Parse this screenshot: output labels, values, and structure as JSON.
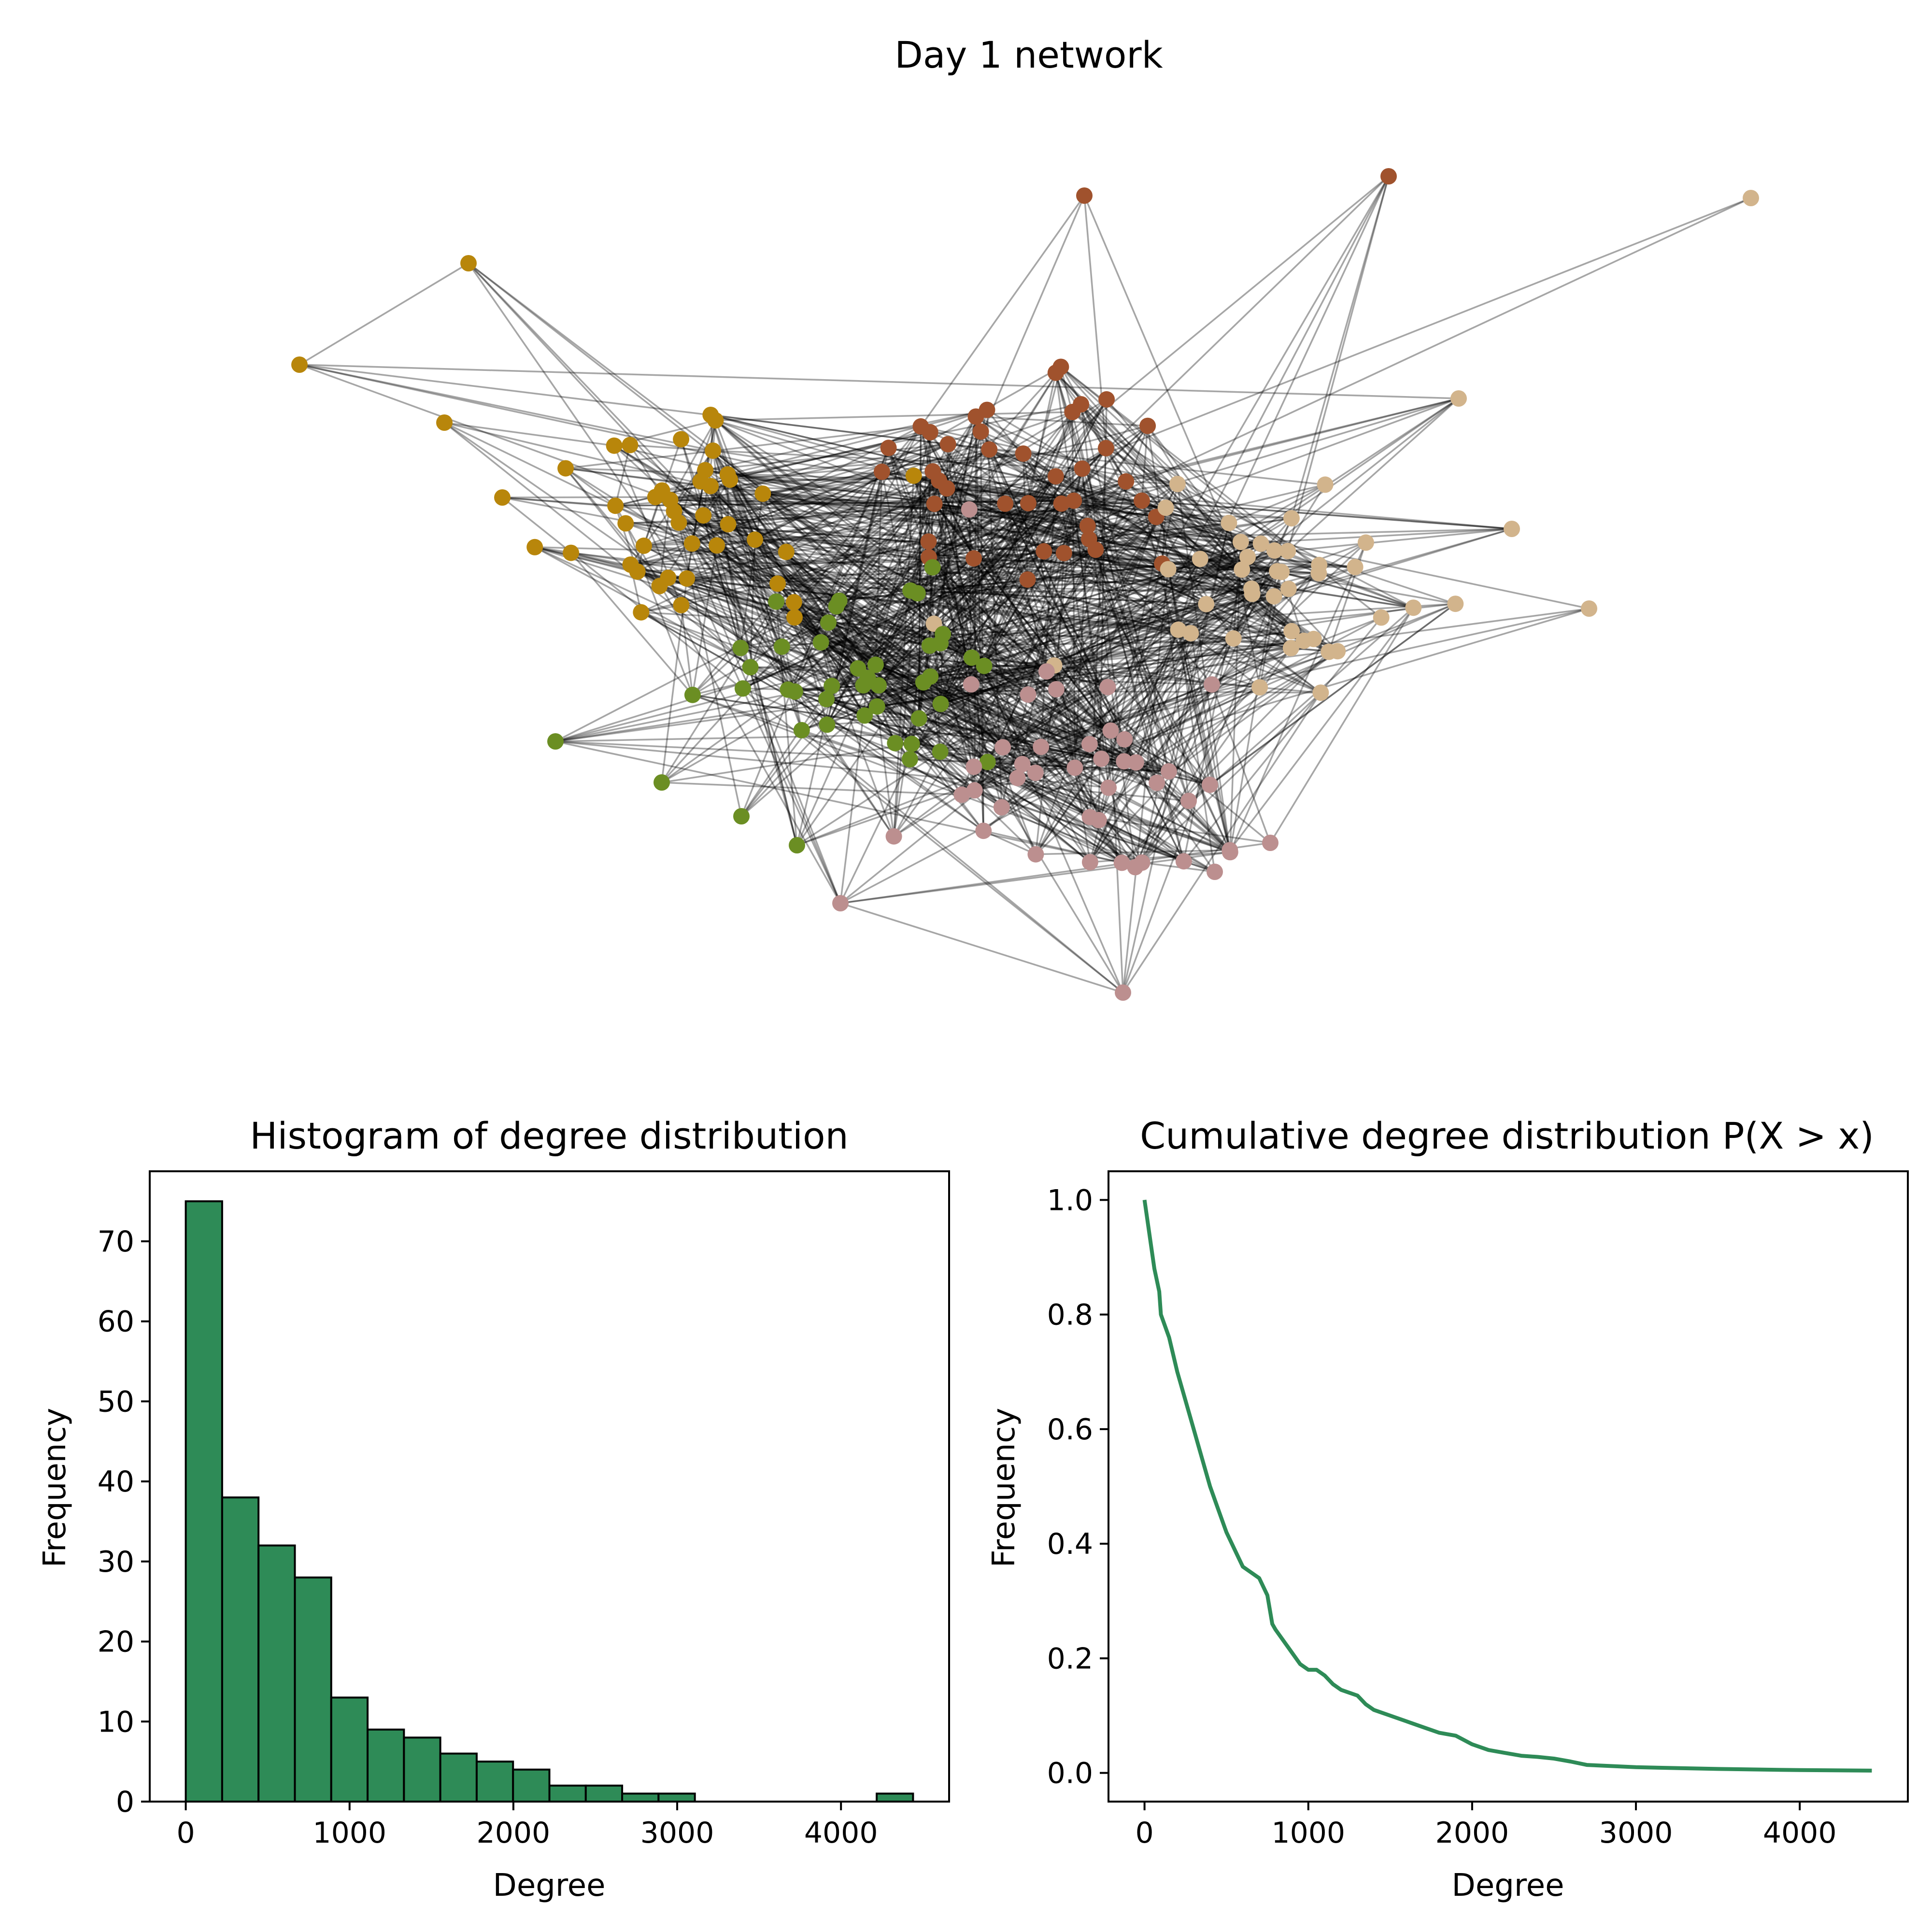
{
  "network": {
    "title": "Day 1 network",
    "community_colors": [
      "#b8860b",
      "#a0522d",
      "#d2b48c",
      "#6b8e23",
      "#bc8f8f"
    ],
    "edge_color": "#000000"
  },
  "chart_data": [
    {
      "type": "bar",
      "title": "Histogram of degree distribution",
      "xlabel": "Degree",
      "ylabel": "Frequency",
      "bin_edges": [
        0,
        222,
        444,
        666,
        888,
        1110,
        1332,
        1554,
        1776,
        1998,
        2220,
        2442,
        2664,
        2886,
        3108,
        3330,
        3552,
        3774,
        3996,
        4218,
        4440
      ],
      "values": [
        75,
        38,
        32,
        28,
        13,
        9,
        8,
        6,
        5,
        4,
        2,
        2,
        1,
        1,
        0,
        0,
        0,
        0,
        0,
        1
      ],
      "xlim": [
        -220,
        4660
      ],
      "ylim": [
        0,
        78.75
      ],
      "xticks": [
        0,
        1000,
        2000,
        3000,
        4000
      ],
      "yticks": [
        0,
        10,
        20,
        30,
        40,
        50,
        60,
        70
      ],
      "color": "#2e8b57",
      "edgecolor": "#000000"
    },
    {
      "type": "line",
      "title": "Cumulative degree distribution P(X > x)",
      "xlabel": "Degree",
      "ylabel": "Frequency",
      "x": [
        0,
        30,
        60,
        90,
        100,
        150,
        200,
        250,
        300,
        350,
        400,
        450,
        500,
        550,
        600,
        650,
        700,
        750,
        780,
        800,
        850,
        900,
        950,
        1000,
        1050,
        1100,
        1150,
        1200,
        1300,
        1350,
        1400,
        1500,
        1600,
        1700,
        1800,
        1900,
        2000,
        2100,
        2200,
        2300,
        2400,
        2500,
        2600,
        2700,
        3000,
        3500,
        4000,
        4440
      ],
      "y": [
        1.0,
        0.94,
        0.88,
        0.84,
        0.8,
        0.76,
        0.7,
        0.65,
        0.6,
        0.55,
        0.5,
        0.46,
        0.42,
        0.39,
        0.36,
        0.35,
        0.34,
        0.31,
        0.26,
        0.25,
        0.23,
        0.21,
        0.19,
        0.18,
        0.18,
        0.17,
        0.155,
        0.145,
        0.135,
        0.12,
        0.11,
        0.1,
        0.09,
        0.08,
        0.07,
        0.065,
        0.05,
        0.04,
        0.035,
        0.03,
        0.028,
        0.025,
        0.02,
        0.014,
        0.01,
        0.007,
        0.005,
        0.004
      ],
      "xlim": [
        -220,
        4660
      ],
      "ylim": [
        -0.05,
        1.05
      ],
      "xticks": [
        0,
        1000,
        2000,
        3000,
        4000
      ],
      "yticks": [
        "0.0",
        "0.2",
        "0.4",
        "0.6",
        "0.8",
        "1.0"
      ],
      "color": "#2e8b57"
    }
  ]
}
